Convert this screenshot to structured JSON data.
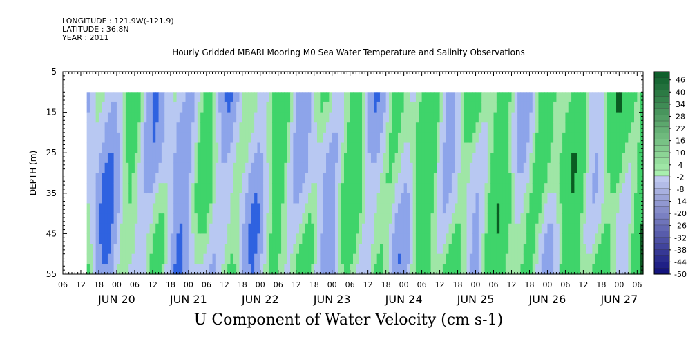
{
  "header": {
    "longitude": "LONGITUDE : 121.9W(-121.9)",
    "latitude": "LATITUDE : 36.8N",
    "year": "YEAR : 2011"
  },
  "chart_data": {
    "type": "heatmap",
    "title": "Hourly Gridded MBARI Mooring M0 Sea Water Temperature and Salinity Observations",
    "xlabel": "U Component of Water Velocity (cm s-1)",
    "ylabel": "DEPTH (m)",
    "x_time_range": [
      "2011-06-19 06:00",
      "2011-06-27 08:00"
    ],
    "data_time_range": [
      "2011-06-19 14:00",
      "2011-06-27 08:00"
    ],
    "y_range": [
      5,
      55
    ],
    "y_inverted": true,
    "data_depth_range": [
      10,
      55
    ],
    "y_ticks": [
      5,
      15,
      25,
      35,
      45,
      55
    ],
    "x_hour_ticks": [
      "06",
      "12",
      "18",
      "00",
      "06",
      "12",
      "18",
      "00",
      "06",
      "12",
      "18",
      "00",
      "06",
      "12",
      "18",
      "00",
      "06",
      "12",
      "18",
      "00",
      "06",
      "12",
      "18",
      "00",
      "06",
      "12",
      "18",
      "00",
      "06",
      "12",
      "18",
      "00",
      "06"
    ],
    "x_day_labels": [
      "JUN 20",
      "JUN 21",
      "JUN 22",
      "JUN 23",
      "JUN 24",
      "JUN 25",
      "JUN 26",
      "JUN 27"
    ],
    "colorbar": {
      "min": -50,
      "max": 50,
      "step": 3,
      "labels": [
        "46",
        "40",
        "34",
        "28",
        "22",
        "16",
        "10",
        "4",
        "-2",
        "-8",
        "-14",
        "-20",
        "-26",
        "-32",
        "-38",
        "-44",
        "-50"
      ]
    },
    "colors": {
      "strong_negative": "#0a1a7a",
      "moderate_negative": "#2f62e0",
      "weak_negative": "#8da4ea",
      "near_zero": "#b8c8f2",
      "weak_positive": "#9fe6a6",
      "moderate_positive": "#3fd46a",
      "strong_positive": "#0a5c22"
    },
    "grid": false,
    "legend": "right colorbar"
  }
}
